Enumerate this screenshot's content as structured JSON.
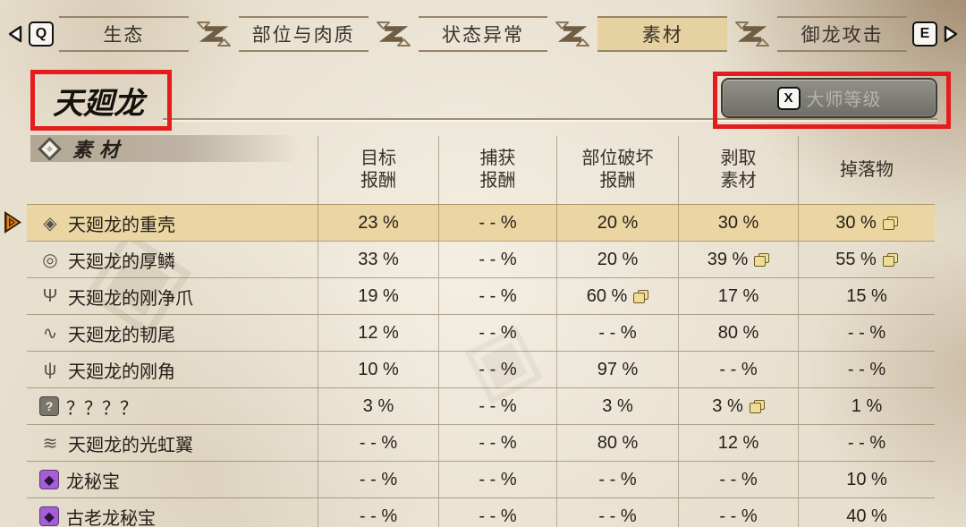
{
  "nav": {
    "prev_key": "Q",
    "next_key": "E",
    "tabs": [
      {
        "label": "生态",
        "active": false
      },
      {
        "label": "部位与肉质",
        "active": false
      },
      {
        "label": "状态异常",
        "active": false
      },
      {
        "label": "素材",
        "active": true
      },
      {
        "label": "御龙攻击",
        "active": false
      }
    ]
  },
  "header": {
    "title": "天廻龙",
    "master_rank_key": "X",
    "master_rank_label": "大师等级"
  },
  "section": {
    "label": "素材"
  },
  "table": {
    "columns": [
      [
        "目标",
        "报酬"
      ],
      [
        "捕获",
        "报酬"
      ],
      [
        "部位破坏",
        "报酬"
      ],
      [
        "剥取",
        "素材"
      ],
      [
        "掉落物"
      ]
    ],
    "percent_suffix": " %",
    "empty_value": "- - %",
    "rows": [
      {
        "icon": "carapace-icon",
        "name": "天廻龙的重壳",
        "selected": true,
        "values": [
          {
            "v": "23"
          },
          {
            "v": null
          },
          {
            "v": "20"
          },
          {
            "v": "30"
          },
          {
            "v": "30",
            "multi": true
          }
        ]
      },
      {
        "icon": "scale-icon",
        "name": "天廻龙的厚鳞",
        "selected": false,
        "values": [
          {
            "v": "33"
          },
          {
            "v": null
          },
          {
            "v": "20"
          },
          {
            "v": "39",
            "multi": true
          },
          {
            "v": "55",
            "multi": true
          }
        ]
      },
      {
        "icon": "claw-icon",
        "name": "天廻龙的刚净爪",
        "selected": false,
        "values": [
          {
            "v": "19"
          },
          {
            "v": null
          },
          {
            "v": "60",
            "multi": true
          },
          {
            "v": "17"
          },
          {
            "v": "15"
          }
        ]
      },
      {
        "icon": "tail-icon",
        "name": "天廻龙的韧尾",
        "selected": false,
        "values": [
          {
            "v": "12"
          },
          {
            "v": null
          },
          {
            "v": null
          },
          {
            "v": "80"
          },
          {
            "v": null
          }
        ]
      },
      {
        "icon": "horn-icon",
        "name": "天廻龙的刚角",
        "selected": false,
        "values": [
          {
            "v": "10"
          },
          {
            "v": null
          },
          {
            "v": "97"
          },
          {
            "v": null
          },
          {
            "v": null
          }
        ]
      },
      {
        "icon": "mystery-icon",
        "name": "？？？？",
        "selected": false,
        "values": [
          {
            "v": "3"
          },
          {
            "v": null
          },
          {
            "v": "3"
          },
          {
            "v": "3",
            "multi": true
          },
          {
            "v": "1"
          }
        ]
      },
      {
        "icon": "wing-icon",
        "name": "天廻龙的光虹翼",
        "selected": false,
        "values": [
          {
            "v": null
          },
          {
            "v": null
          },
          {
            "v": "80"
          },
          {
            "v": "12"
          },
          {
            "v": null
          }
        ]
      },
      {
        "icon": "treasure-icon",
        "name": "龙秘宝",
        "selected": false,
        "values": [
          {
            "v": null
          },
          {
            "v": null
          },
          {
            "v": null
          },
          {
            "v": null
          },
          {
            "v": "10"
          }
        ]
      },
      {
        "icon": "treasure-icon",
        "name": "古老龙秘宝",
        "selected": false,
        "values": [
          {
            "v": null
          },
          {
            "v": null
          },
          {
            "v": null
          },
          {
            "v": null
          },
          {
            "v": "40"
          }
        ]
      }
    ]
  },
  "colors": {
    "active_tab": "#e6d2a0",
    "selected_row": "#ead5a3",
    "annotation_red": "#e51c1c",
    "treasure_purple": "#a55fd6",
    "cursor_orange": "#e8821e"
  }
}
